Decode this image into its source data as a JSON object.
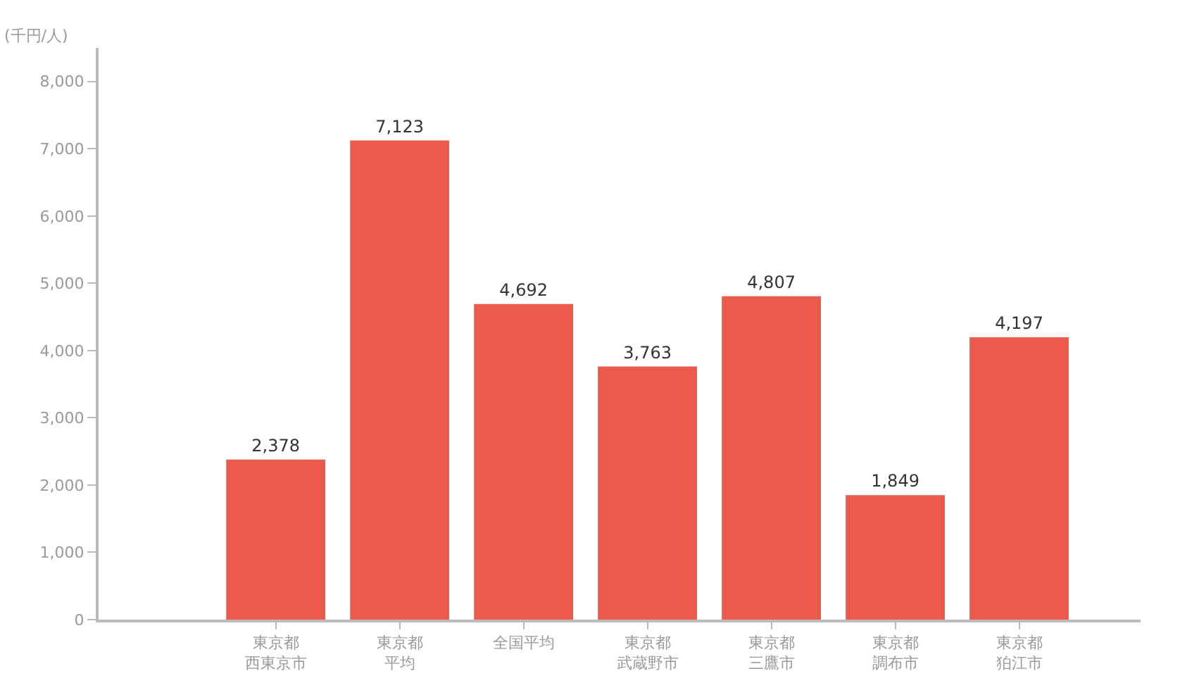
{
  "chart_data": {
    "type": "bar",
    "ylabel": "(千円/人)",
    "categories": [
      "東京都西東京市",
      "東京都平均",
      "全国平均",
      "東京都武蔵野市",
      "東京都三鷹市",
      "東京都調布市",
      "東京都狛江市"
    ],
    "values": [
      2378,
      7123,
      4692,
      3763,
      4807,
      1849,
      4197
    ],
    "value_labels": [
      "2,378",
      "7,123",
      "4,692",
      "3,763",
      "4,807",
      "1,849",
      "4,197"
    ],
    "color": "#eb5a4b",
    "ylim": [
      0,
      8500
    ],
    "yticks": [
      0,
      {
        "value": 1000,
        "label": "1,000"
      },
      {
        "value": 2000,
        "label": "2,000"
      },
      {
        "value": 3000,
        "label": "3,000"
      },
      {
        "value": 4000,
        "label": "4,000"
      },
      {
        "value": 5000,
        "label": "5,000"
      },
      {
        "value": 6000,
        "label": "6,000"
      },
      {
        "value": 7000,
        "label": "7,000"
      },
      {
        "value": 8000,
        "label": "8,000"
      }
    ],
    "legend": false
  }
}
